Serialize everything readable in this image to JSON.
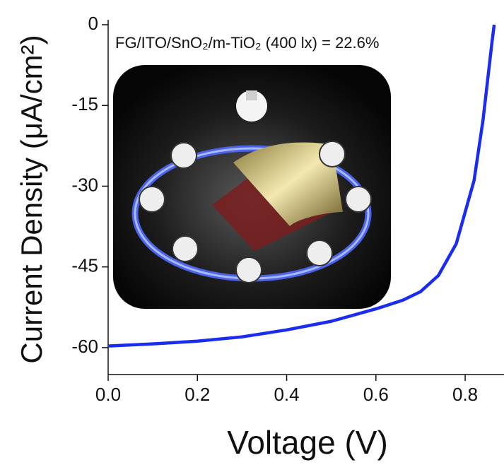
{
  "chart_data": {
    "type": "line",
    "annotation": "FG/ITO/SnO₂/m-TiO₂ (400 lx) = 22.6%",
    "x_label": "Voltage (V)",
    "y_label": "Current Density (μA/cm²)",
    "x": [
      0,
      0.1,
      0.2,
      0.3,
      0.4,
      0.5,
      0.6,
      0.66,
      0.7,
      0.74,
      0.78,
      0.82,
      0.84,
      0.86,
      0.865
    ],
    "series": [
      {
        "color": "#1a2cf0",
        "values": [
          -59.7,
          -59.3,
          -58.8,
          -58.0,
          -56.7,
          -55.1,
          -52.8,
          -51.2,
          -49.6,
          -46.6,
          -40.7,
          -28.9,
          -17.7,
          -3.3,
          0
        ]
      }
    ],
    "xlim": [
      0,
      0.887
    ],
    "xticks": [
      {
        "value": 0,
        "label": "0.0"
      },
      0.2,
      0.4,
      0.6,
      0.8
    ],
    "ylim": [
      -65,
      0
    ],
    "yticks": [
      -60,
      -45,
      -30,
      -15,
      0
    ]
  }
}
